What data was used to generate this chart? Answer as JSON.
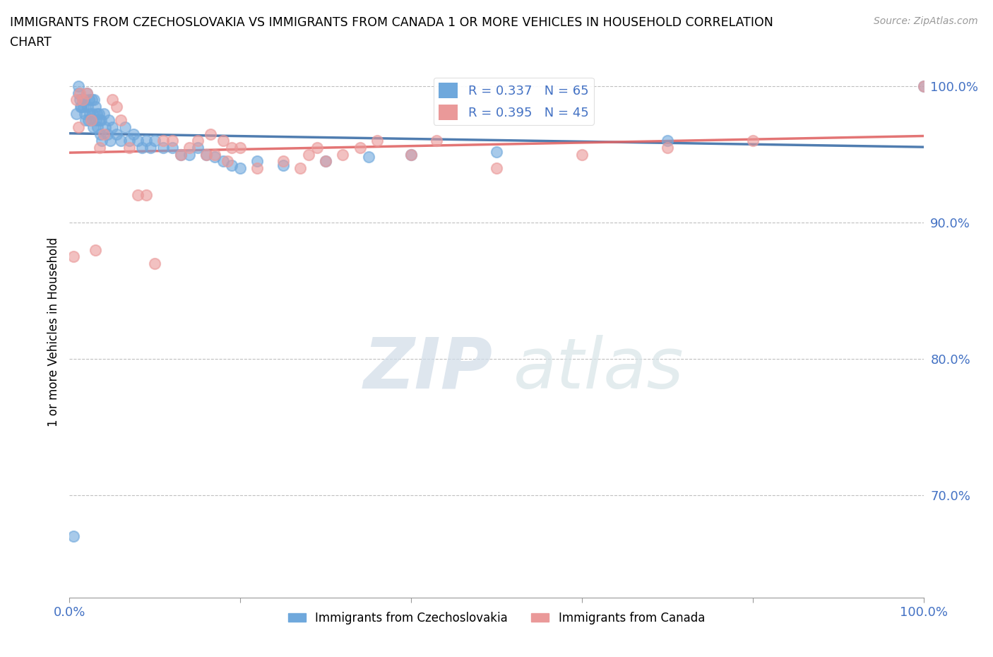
{
  "title_line1": "IMMIGRANTS FROM CZECHOSLOVAKIA VS IMMIGRANTS FROM CANADA 1 OR MORE VEHICLES IN HOUSEHOLD CORRELATION",
  "title_line2": "CHART",
  "source_text": "Source: ZipAtlas.com",
  "ylabel": "1 or more Vehicles in Household",
  "R_czech": 0.337,
  "N_czech": 65,
  "R_canada": 0.395,
  "N_canada": 45,
  "xlim": [
    0.0,
    1.0
  ],
  "ylim": [
    0.625,
    1.015
  ],
  "yticks": [
    0.7,
    0.8,
    0.9,
    1.0
  ],
  "ytick_labels": [
    "70.0%",
    "80.0%",
    "90.0%",
    "100.0%"
  ],
  "xticks": [
    0.0,
    0.2,
    0.4,
    0.6,
    0.8,
    1.0
  ],
  "xtick_labels": [
    "0.0%",
    "",
    "",
    "",
    "",
    "100.0%"
  ],
  "color_czech": "#6fa8dc",
  "color_canada": "#ea9999",
  "trendline_color_czech": "#3d6fa8",
  "trendline_color_canada": "#e06666",
  "legend_label_czech": "Immigrants from Czechoslovakia",
  "legend_label_canada": "Immigrants from Canada",
  "watermark_zip": "ZIP",
  "watermark_atlas": "atlas",
  "czech_x": [
    0.005,
    0.008,
    0.01,
    0.01,
    0.012,
    0.013,
    0.014,
    0.015,
    0.016,
    0.017,
    0.018,
    0.019,
    0.02,
    0.021,
    0.022,
    0.023,
    0.024,
    0.025,
    0.026,
    0.027,
    0.028,
    0.029,
    0.03,
    0.031,
    0.032,
    0.033,
    0.034,
    0.035,
    0.036,
    0.037,
    0.038,
    0.04,
    0.042,
    0.044,
    0.046,
    0.048,
    0.05,
    0.055,
    0.06,
    0.065,
    0.07,
    0.075,
    0.08,
    0.085,
    0.09,
    0.095,
    0.1,
    0.11,
    0.12,
    0.13,
    0.14,
    0.15,
    0.16,
    0.17,
    0.18,
    0.19,
    0.2,
    0.22,
    0.25,
    0.3,
    0.35,
    0.4,
    0.5,
    0.7,
    1.0
  ],
  "czech_y": [
    0.67,
    0.98,
    1.0,
    0.995,
    0.99,
    0.985,
    0.985,
    0.99,
    0.985,
    0.99,
    0.98,
    0.975,
    0.995,
    0.985,
    0.975,
    0.99,
    0.98,
    0.975,
    0.99,
    0.98,
    0.97,
    0.99,
    0.985,
    0.975,
    0.98,
    0.97,
    0.98,
    0.975,
    0.965,
    0.975,
    0.96,
    0.98,
    0.97,
    0.965,
    0.975,
    0.96,
    0.97,
    0.965,
    0.96,
    0.97,
    0.96,
    0.965,
    0.96,
    0.955,
    0.96,
    0.955,
    0.96,
    0.955,
    0.955,
    0.95,
    0.95,
    0.955,
    0.95,
    0.948,
    0.945,
    0.942,
    0.94,
    0.945,
    0.942,
    0.945,
    0.948,
    0.95,
    0.952,
    0.96,
    1.0
  ],
  "canada_x": [
    0.005,
    0.008,
    0.01,
    0.012,
    0.015,
    0.02,
    0.025,
    0.03,
    0.035,
    0.04,
    0.05,
    0.055,
    0.06,
    0.07,
    0.08,
    0.09,
    0.1,
    0.11,
    0.12,
    0.13,
    0.14,
    0.15,
    0.16,
    0.165,
    0.17,
    0.18,
    0.185,
    0.19,
    0.2,
    0.22,
    0.25,
    0.27,
    0.28,
    0.29,
    0.3,
    0.32,
    0.34,
    0.36,
    0.4,
    0.43,
    0.5,
    0.6,
    0.7,
    0.8,
    1.0
  ],
  "canada_y": [
    0.875,
    0.99,
    0.97,
    0.995,
    0.99,
    0.995,
    0.975,
    0.88,
    0.955,
    0.965,
    0.99,
    0.985,
    0.975,
    0.955,
    0.92,
    0.92,
    0.87,
    0.96,
    0.96,
    0.95,
    0.955,
    0.96,
    0.95,
    0.965,
    0.95,
    0.96,
    0.945,
    0.955,
    0.955,
    0.94,
    0.945,
    0.94,
    0.95,
    0.955,
    0.945,
    0.95,
    0.955,
    0.96,
    0.95,
    0.96,
    0.94,
    0.95,
    0.955,
    0.96,
    1.0
  ]
}
